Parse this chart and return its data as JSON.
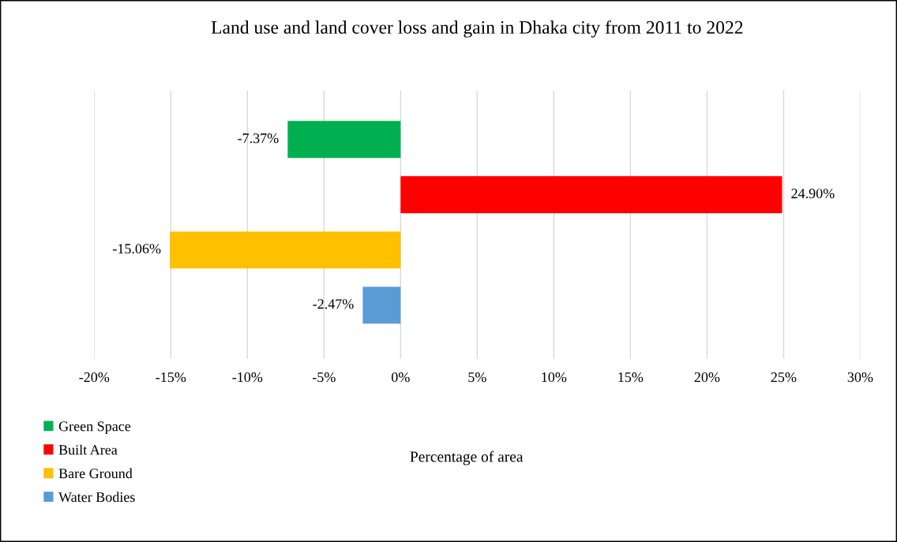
{
  "chart_data": {
    "type": "bar",
    "orientation": "horizontal",
    "title": "Land use and land cover loss and gain in Dhaka city from 2011 to 2022",
    "annotations": [
      "Percentage of area"
    ],
    "categories": [
      null
    ],
    "series": [
      {
        "name": "Green Space",
        "color": "#00b050",
        "values": [
          -7.37
        ],
        "value_labels": [
          "-7.37%"
        ]
      },
      {
        "name": "Built Area",
        "color": "#ff0000",
        "values": [
          24.9
        ],
        "value_labels": [
          "24.90%"
        ]
      },
      {
        "name": "Bare Ground",
        "color": "#ffc000",
        "values": [
          -15.06
        ],
        "value_labels": [
          "-15.06%"
        ]
      },
      {
        "name": "Water Bodies",
        "color": "#5b9bd5",
        "values": [
          -2.47
        ],
        "value_labels": [
          "-2.47%"
        ]
      }
    ],
    "xlim": [
      -20,
      30
    ],
    "xticks": [
      {
        "value": -20,
        "label": "-20%"
      },
      {
        "value": -15,
        "label": "-15%"
      },
      {
        "value": -10,
        "label": "-10%"
      },
      {
        "value": -5,
        "label": "-5%"
      },
      {
        "value": 0,
        "label": "0%"
      },
      {
        "value": 5,
        "label": "5%"
      },
      {
        "value": 10,
        "label": "10%"
      },
      {
        "value": 15,
        "label": "15%"
      },
      {
        "value": 20,
        "label": "20%"
      },
      {
        "value": 25,
        "label": "25%"
      },
      {
        "value": 30,
        "label": "30%"
      }
    ],
    "grid": "x",
    "legend": "bottom left"
  }
}
